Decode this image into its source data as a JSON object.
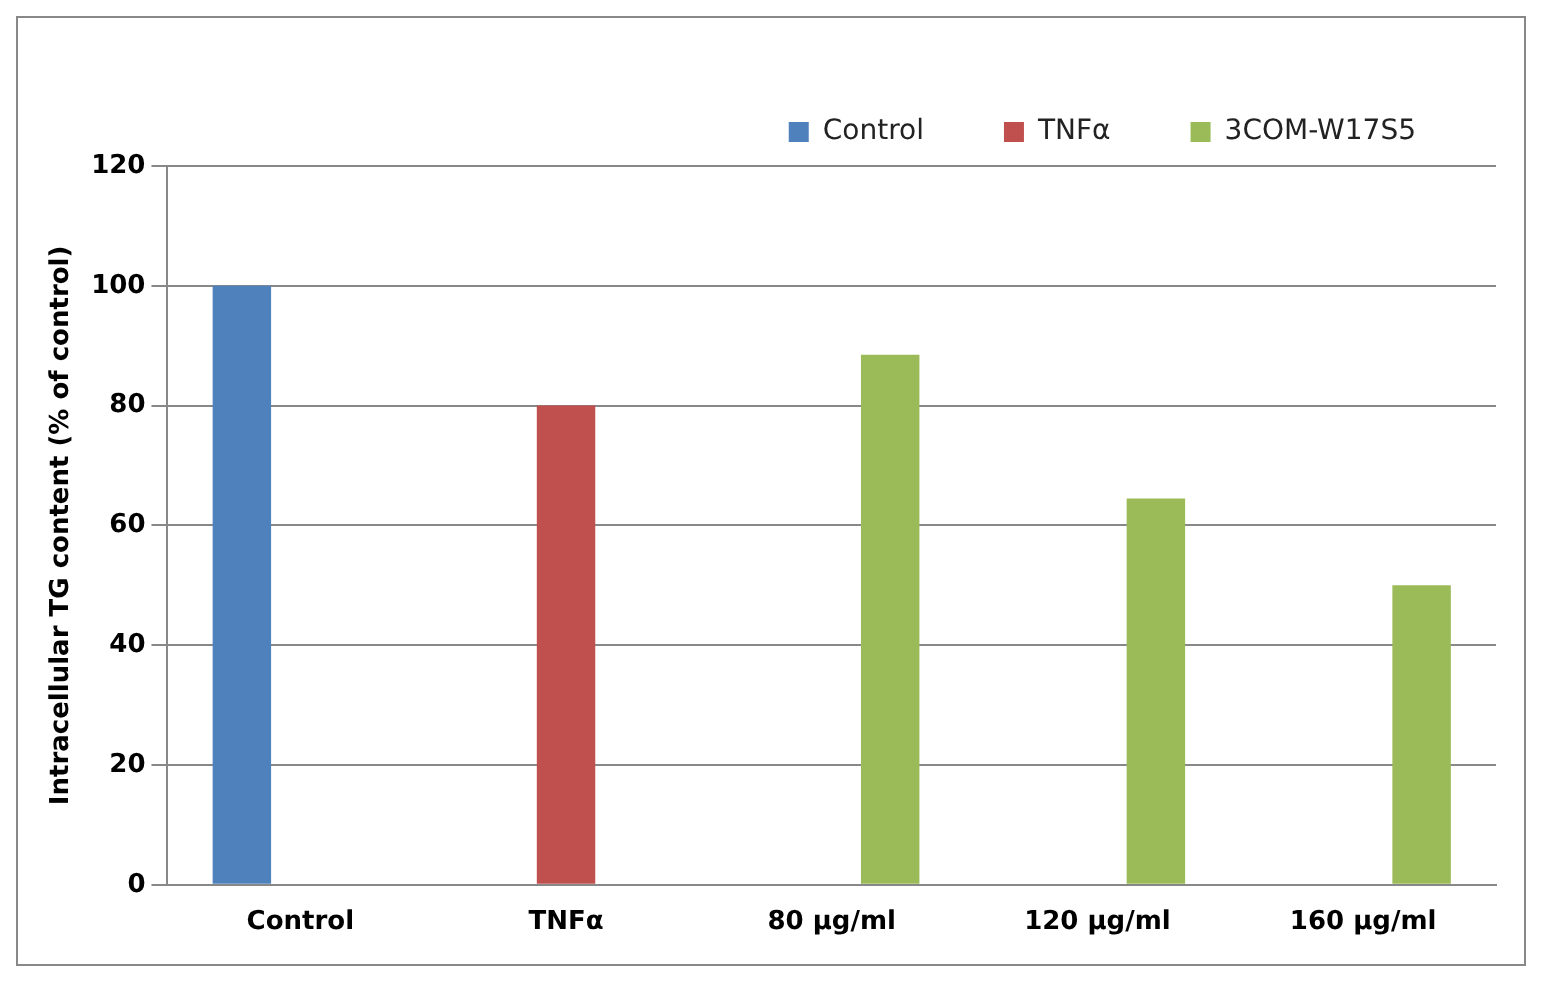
{
  "chart_data": {
    "type": "bar",
    "ylabel": "Intracellular TG content (% of control)",
    "categories": [
      "Control",
      "TNFα",
      "80 µg/ml",
      "120 µg/ml",
      "160 µg/ml"
    ],
    "series": [
      {
        "name": "Control",
        "color": "#4f81bd",
        "values": [
          100,
          null,
          null,
          null,
          null
        ]
      },
      {
        "name": "TNFα",
        "color": "#c0504d",
        "values": [
          null,
          80,
          null,
          null,
          null
        ]
      },
      {
        "name": "3COM-W17S5",
        "color": "#9bbb59",
        "values": [
          null,
          null,
          88.5,
          64.5,
          50
        ]
      }
    ],
    "ylim": [
      0,
      120
    ],
    "yticks": [
      0,
      20,
      40,
      60,
      80,
      100,
      120
    ],
    "grid": "y",
    "legend": "top right"
  }
}
